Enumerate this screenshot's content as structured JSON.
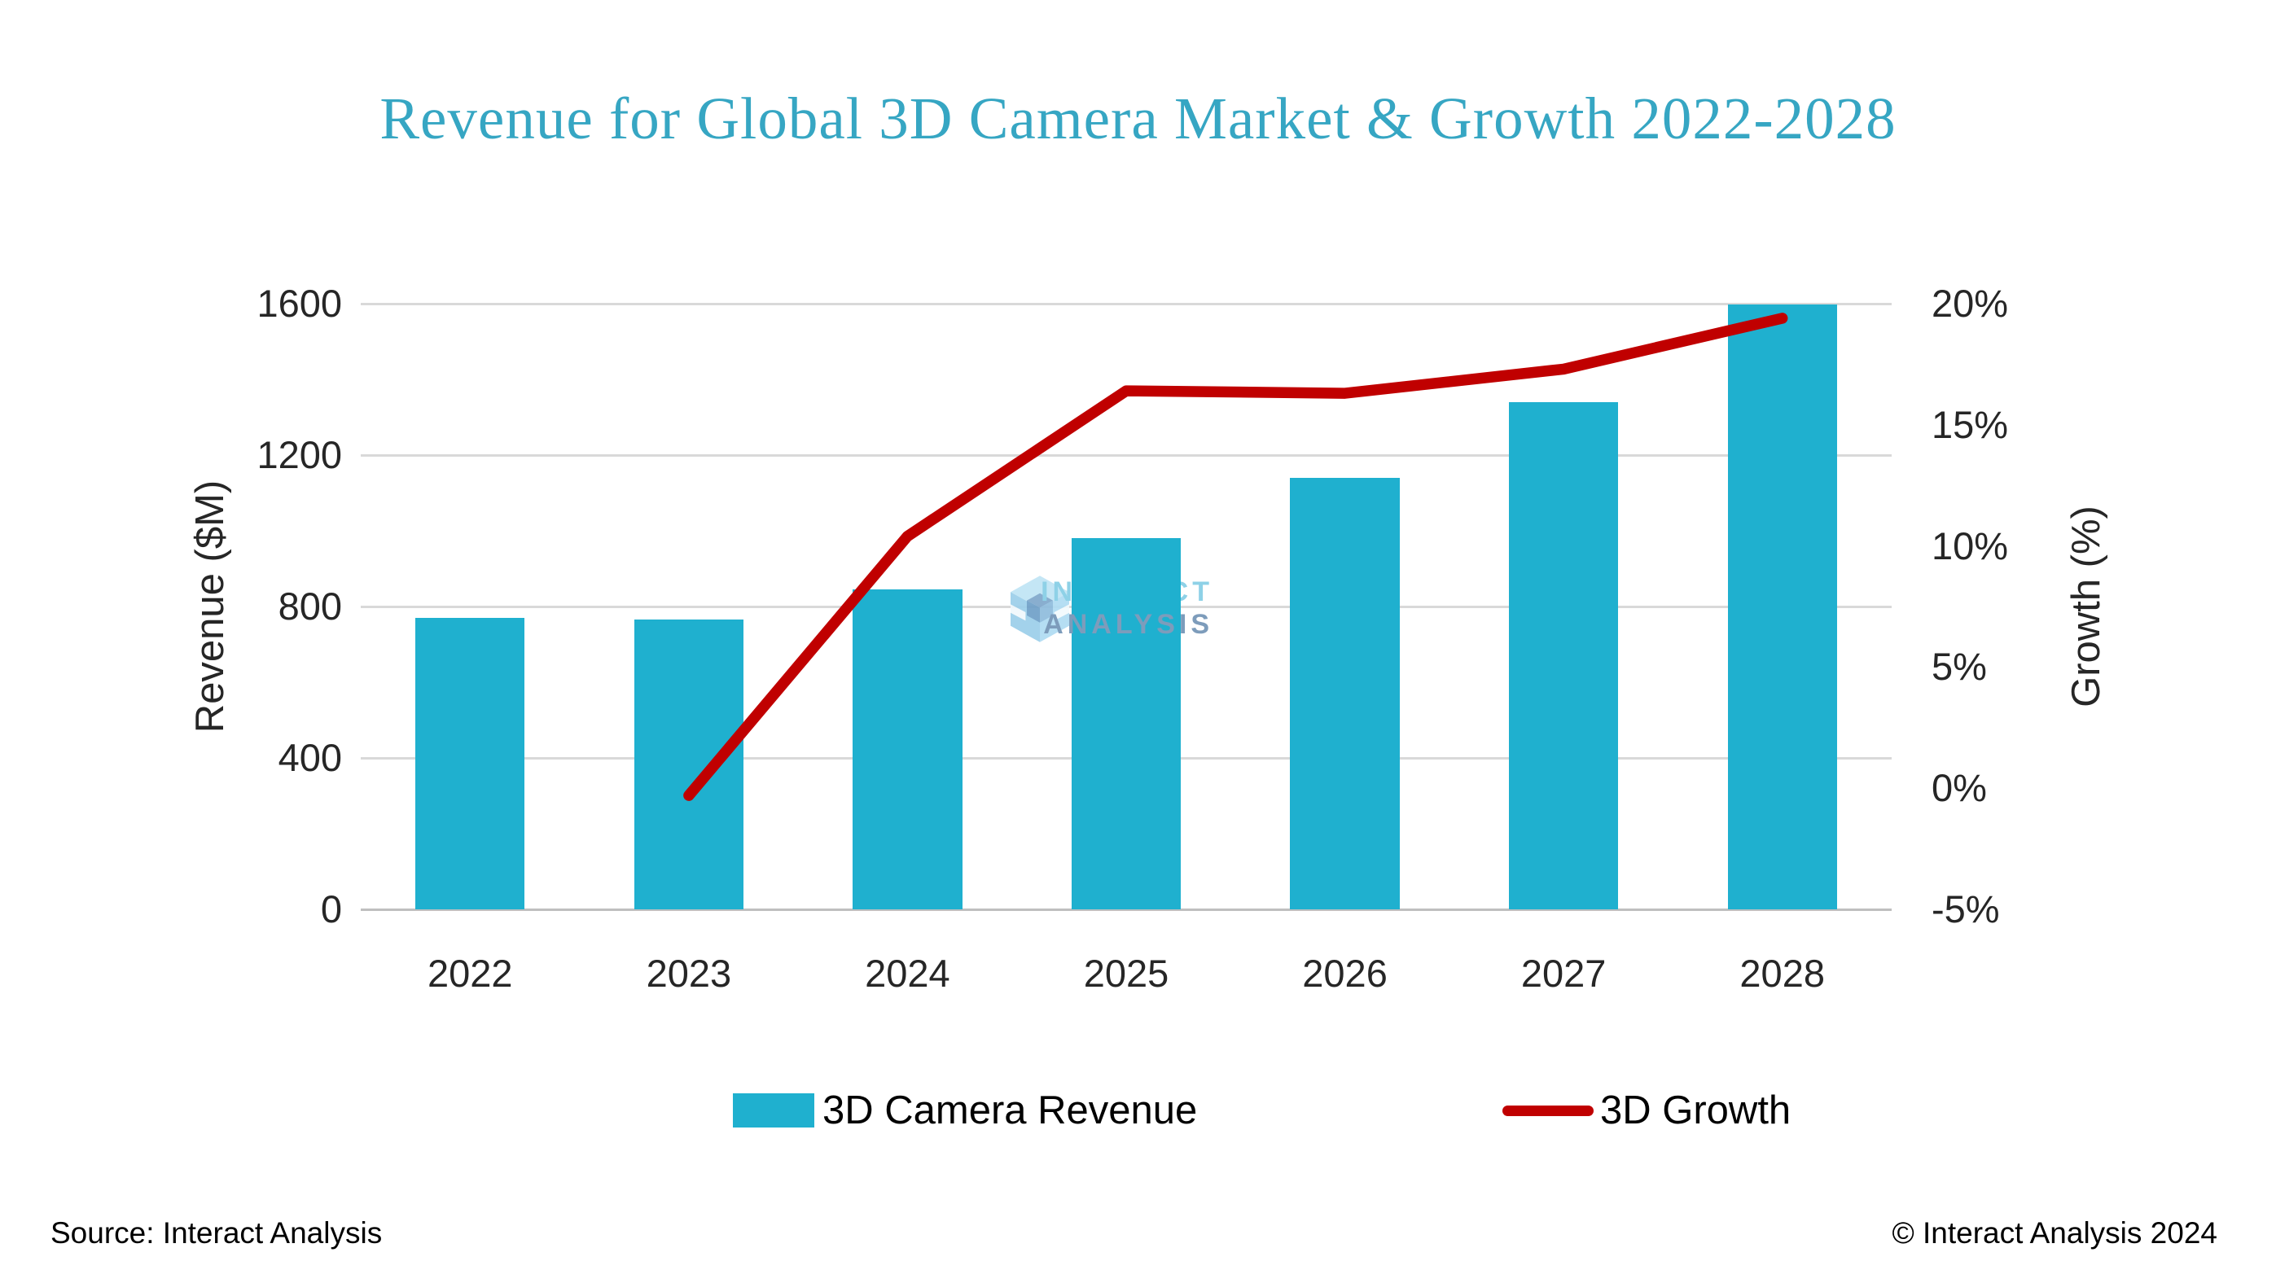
{
  "title": {
    "text": "Revenue for Global 3D Camera Market & Growth 2022-2028",
    "color": "#36A6C3"
  },
  "chart_data": {
    "type": "bar",
    "subtype": "dual-axis bar + line combo",
    "categories": [
      "2022",
      "2023",
      "2024",
      "2025",
      "2026",
      "2027",
      "2028"
    ],
    "series": [
      {
        "name": "3D Camera Revenue",
        "kind": "bar",
        "axis": "left",
        "color": "#1FB0CF",
        "values": [
          770,
          765,
          845,
          980,
          1140,
          1340,
          1598
        ]
      },
      {
        "name": "3D Growth",
        "kind": "line",
        "axis": "right",
        "color": "#C00000",
        "values": [
          null,
          -0.3,
          10.4,
          16.4,
          16.3,
          17.3,
          19.4
        ]
      }
    ],
    "left_axis": {
      "label": "Revenue ($M)",
      "min": 0,
      "max": 1600,
      "tick_step": 400,
      "ticks": [
        0,
        400,
        800,
        1200,
        1600
      ]
    },
    "right_axis": {
      "label": "Growth (%)",
      "min": -5,
      "max": 20,
      "tick_step": 5,
      "ticks": [
        -5,
        0,
        5,
        10,
        15,
        20
      ],
      "tick_suffix": "%"
    },
    "grid": "horizontal only",
    "legend_position": "bottom"
  },
  "watermark": {
    "name": "interact-analysis-logo",
    "line1": "INTERACT",
    "line2": "ANALYSIS"
  },
  "footer": {
    "source": "Source: Interact Analysis",
    "copyright": "© Interact Analysis 2024"
  },
  "colors": {
    "background": "#FFFFFF",
    "gridline": "#D9D9D9",
    "axis_line": "#BFBFBF",
    "axis_text": "#262626",
    "bar": "#1FB0CF",
    "line": "#C00000",
    "title": "#36A6C3",
    "watermark_light": "#8ED1E7",
    "watermark_dark": "#7D9CBB"
  }
}
